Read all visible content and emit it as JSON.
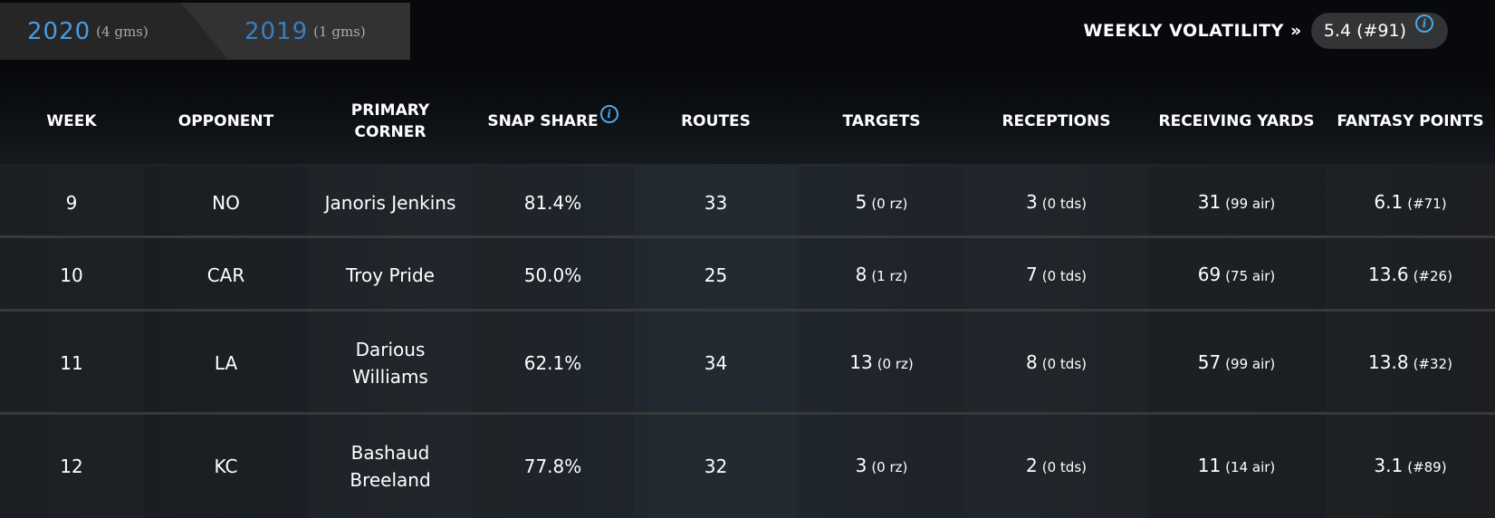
{
  "season_tabs": [
    {
      "year": "2020",
      "games": "(4 gms)",
      "active": true
    },
    {
      "year": "2019",
      "games": "(1 gms)",
      "active": false
    }
  ],
  "volatility": {
    "label": "WEEKLY VOLATILITY »",
    "value": "5.4 (#91)",
    "info_icon": "info-icon"
  },
  "colors": {
    "accent": "#4aa8e8",
    "tab_year_inactive": "#3a7fc0"
  },
  "columns": [
    "WEEK",
    "OPPONENT",
    "PRIMARY CORNER",
    "SNAP SHARE",
    "ROUTES",
    "TARGETS",
    "RECEPTIONS",
    "RECEIVING YARDS",
    "FANTASY POINTS"
  ],
  "rows": [
    {
      "week": "9",
      "opponent": "NO",
      "corner": "Janoris Jenkins",
      "snap": "81.4%",
      "routes": "33",
      "targets": "5",
      "targets_sub": "(0 rz)",
      "receptions": "3",
      "receptions_sub": "(0 tds)",
      "yards": "31",
      "yards_sub": "(99 air)",
      "points": "6.1",
      "points_sub": "(#71)"
    },
    {
      "week": "10",
      "opponent": "CAR",
      "corner": "Troy Pride",
      "snap": "50.0%",
      "routes": "25",
      "targets": "8",
      "targets_sub": "(1 rz)",
      "receptions": "7",
      "receptions_sub": "(0 tds)",
      "yards": "69",
      "yards_sub": "(75 air)",
      "points": "13.6",
      "points_sub": "(#26)"
    },
    {
      "week": "11",
      "opponent": "LA",
      "corner": "Darious Williams",
      "snap": "62.1%",
      "routes": "34",
      "targets": "13",
      "targets_sub": "(0 rz)",
      "receptions": "8",
      "receptions_sub": "(0 tds)",
      "yards": "57",
      "yards_sub": "(99 air)",
      "points": "13.8",
      "points_sub": "(#32)"
    },
    {
      "week": "12",
      "opponent": "KC",
      "corner": "Bashaud Breeland",
      "snap": "77.8%",
      "routes": "32",
      "targets": "3",
      "targets_sub": "(0 rz)",
      "receptions": "2",
      "receptions_sub": "(0 tds)",
      "yards": "11",
      "yards_sub": "(14 air)",
      "points": "3.1",
      "points_sub": "(#89)"
    }
  ]
}
